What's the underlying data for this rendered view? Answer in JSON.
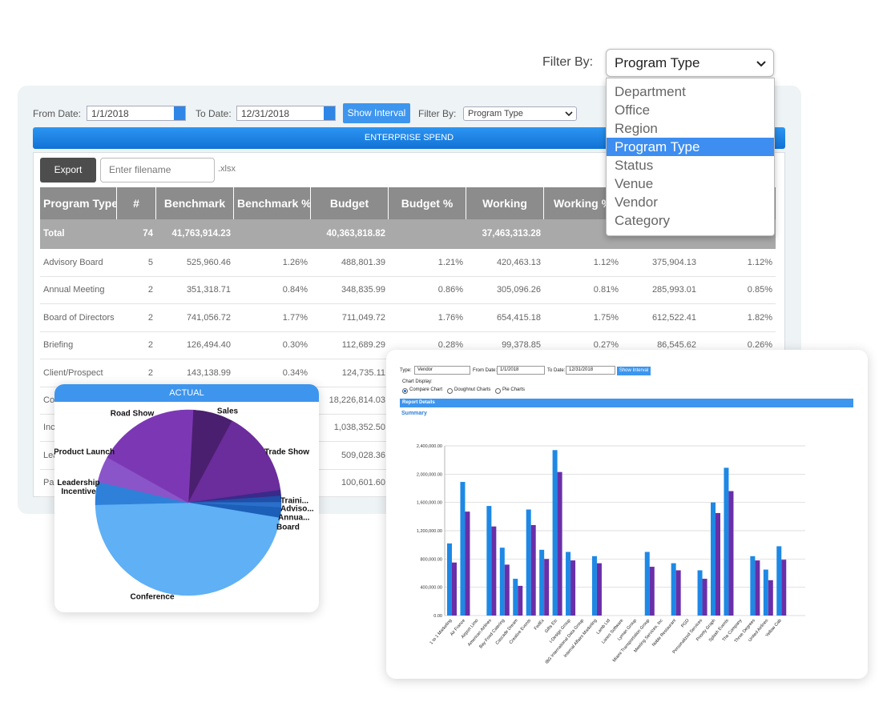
{
  "filter_dropdown": {
    "label": "Filter By:",
    "selected": "Program Type",
    "options": [
      "Department",
      "Office",
      "Region",
      "Program Type",
      "Status",
      "Venue",
      "Vendor",
      "Category"
    ],
    "highlighted": 3
  },
  "report": {
    "from_label": "From Date:",
    "from_value": "1/1/2018",
    "to_label": "To Date:",
    "to_value": "12/31/2018",
    "button": "Show Interval",
    "filter_label": "Filter By:",
    "filter_value": "Program Type",
    "banner": "ENTERPRISE SPEND",
    "export": "Export",
    "filename_placeholder": "Enter filename",
    "extension": ".xlsx",
    "table": {
      "columns": [
        "Program Type",
        "#",
        "Benchmark",
        "Benchmark %",
        "Budget",
        "Budget %",
        "Working",
        "Working %",
        null,
        null
      ],
      "total": [
        "Total",
        "74",
        "41,763,914.23",
        null,
        "40,363,818.82",
        null,
        "37,463,313.28",
        null,
        null,
        null
      ],
      "rows": [
        [
          "Advisory Board",
          "5",
          "525,960.46",
          "1.26%",
          "488,801.39",
          "1.21%",
          "420,463.13",
          "1.12%",
          "375,904.13",
          "1.12%"
        ],
        [
          "Annual Meeting",
          "2",
          "351,318.71",
          "0.84%",
          "348,835.99",
          "0.86%",
          "305,096.26",
          "0.81%",
          "285,993.01",
          "0.85%"
        ],
        [
          "Board of Directors",
          "2",
          "741,056.72",
          "1.77%",
          "711,049.72",
          "1.76%",
          "654,415.18",
          "1.75%",
          "612,522.41",
          "1.82%"
        ],
        [
          "Briefing",
          "2",
          "126,494.40",
          "0.30%",
          "112,689.29",
          "0.28%",
          "99,378.85",
          "0.27%",
          "86,545.62",
          "0.26%"
        ],
        [
          "Client/Prospect",
          "2",
          "143,138.99",
          "0.34%",
          "124,735.11",
          null,
          null,
          null,
          null,
          null
        ],
        [
          "Co",
          null,
          null,
          null,
          "18,226,814.03",
          null,
          null,
          null,
          null,
          null
        ],
        [
          "Inc",
          null,
          null,
          null,
          "1,038,352.50",
          null,
          null,
          null,
          null,
          null
        ],
        [
          "Lea",
          null,
          null,
          null,
          "509,028.36",
          null,
          null,
          null,
          null,
          null
        ],
        [
          "Par",
          null,
          null,
          null,
          "100,601.60",
          null,
          null,
          null,
          null,
          null
        ]
      ]
    }
  },
  "vendor_report": {
    "type_label": "Type:",
    "type_value": "Vendor",
    "from_label": "From Date:",
    "from_value": "1/1/2018",
    "to_label": "To Date:",
    "to_value": "12/31/2018",
    "button": "Show Interval",
    "display_label": "Chart Display:",
    "display_options": [
      "Compare Chart",
      "Doughnut Charts",
      "Pie Charts"
    ],
    "display_checked": 0,
    "section": "Report Details",
    "subsection": "Summary"
  },
  "chart_data": [
    {
      "type": "pie",
      "title": "ACTUAL",
      "categories": [
        "Sales",
        "Trade Show",
        "Traini...",
        "Adviso...",
        "Annua...",
        "Board",
        "Conference",
        "Leadership Incentive",
        "Product Launch",
        "Road Show"
      ],
      "values": [
        7,
        15,
        1,
        1.1,
        0.9,
        1.8,
        47,
        4,
        4.5,
        17.7
      ],
      "colors": [
        "#4b1f6f",
        "#6b2c9c",
        "#3a2a8a",
        "#1f4fa8",
        "#2a6fc9",
        "#1c5fb8",
        "#5fb0f5",
        "#2f80d8",
        "#8a55c8",
        "#7c38b4"
      ]
    },
    {
      "type": "bar",
      "categories": [
        "1 to 1 Marketing",
        "Air France",
        "Airport Limo",
        "American Airlines",
        "Bay Food Catering",
        "Cascade Dream",
        "Creative Events",
        "FedEx",
        "Gifts Etc",
        "I-Design Group",
        "IBG International Data Group",
        "Internal Affairs Marketing",
        "Lamb Ltd",
        "Lanes Software",
        "Lyman Group",
        "Miami Transportation Group",
        "Meeting Services, Inc",
        "Noble Restaurant",
        "PGD",
        "Personalized Services",
        "Priority Graph",
        "Splash Events",
        "The Company",
        "Three Degrees",
        "United Airlines",
        "Yellow Cab"
      ],
      "series": [
        {
          "color": "#1e88e5",
          "values": [
            1020000,
            1890000,
            null,
            1550000,
            960000,
            520000,
            1500000,
            930000,
            2340000,
            900000,
            null,
            840000,
            null,
            null,
            null,
            900000,
            null,
            740000,
            null,
            640000,
            1600000,
            2090000,
            null,
            840000,
            650000,
            980000
          ]
        },
        {
          "color": "#6a2fa8",
          "values": [
            750000,
            1470000,
            null,
            1260000,
            720000,
            420000,
            1280000,
            800000,
            2030000,
            780000,
            null,
            740000,
            null,
            null,
            null,
            690000,
            null,
            640000,
            null,
            520000,
            1450000,
            1760000,
            null,
            780000,
            500000,
            790000
          ]
        }
      ],
      "ylim": [
        0,
        2400000
      ],
      "yticks": [
        {
          "value": 0,
          "label": "0.00"
        },
        {
          "value": 400000,
          "label": "400,000.00"
        },
        {
          "value": 800000,
          "label": "800,000.00"
        },
        {
          "value": 1200000,
          "label": "1,200,000.00"
        },
        {
          "value": 1600000,
          "label": "1,600,000.00"
        },
        {
          "value": 2000000,
          "label": "2,000,000.00"
        },
        {
          "value": 2400000,
          "label": "2,400,000.00"
        }
      ],
      "grid": true
    }
  ]
}
